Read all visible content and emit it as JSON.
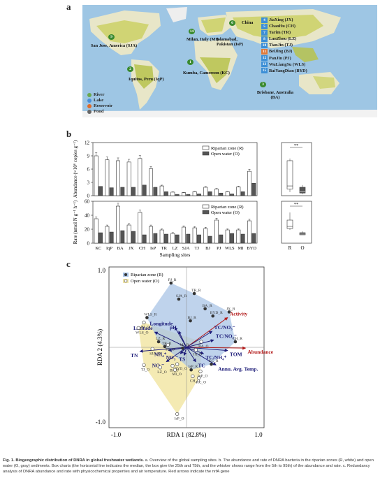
{
  "panels": {
    "a": "a",
    "b": "b",
    "c": "c"
  },
  "map": {
    "labels": [
      {
        "num": "9",
        "text": "San Jose, America (SJA)"
      },
      {
        "num": "2",
        "text": "Iquitos, Peru (IqP)"
      },
      {
        "num": "14",
        "text": "Milan, Italy (MI)"
      },
      {
        "num": "6",
        "text": "Islamabad, Pakistan (IsP)"
      },
      {
        "num": "1",
        "text": "Kumba, Cameroon (KC)"
      },
      {
        "num": "3",
        "text": "Brisbane, Australia (BA)"
      },
      {
        "num": "",
        "text": "China"
      }
    ],
    "sites": [
      {
        "num": "4",
        "name": "JiaXing (JX)",
        "color": "#3d8fd6"
      },
      {
        "num": "5",
        "name": "ChaoHu (CH)",
        "color": "#3d8fd6"
      },
      {
        "num": "7",
        "name": "Tarim (TR)",
        "color": "#3d8fd6"
      },
      {
        "num": "8",
        "name": "LanZhou (LZ)",
        "color": "#3d8fd6"
      },
      {
        "num": "10",
        "name": "TianJin (TJ)",
        "color": "#3d8fd6"
      },
      {
        "num": "11",
        "name": "BeiJing (BJ)",
        "color": "#e07a3a"
      },
      {
        "num": "12",
        "name": "PanJin (PJ)",
        "color": "#3d8fd6"
      },
      {
        "num": "13",
        "name": "WuLiangSu (WLS)",
        "color": "#3d8fd6"
      },
      {
        "num": "15",
        "name": "BaiYangDian (BYD)",
        "color": "#3d8fd6"
      }
    ],
    "legend": [
      {
        "label": "River",
        "color": "#6aa84f"
      },
      {
        "label": "Lake",
        "color": "#4a90d9"
      },
      {
        "label": "Reservoir",
        "color": "#e06b2a"
      },
      {
        "label": "Pond",
        "color": "#666666"
      }
    ]
  },
  "chart_data": [
    {
      "type": "bar",
      "title": "",
      "ylabel": "Abundance (×10⁶ copies g⁻¹)",
      "ylim": [
        0,
        12
      ],
      "yticks": [
        0,
        3,
        6,
        9,
        12
      ],
      "categories": [
        "KC",
        "IqP",
        "BA",
        "JX",
        "CH",
        "IsP",
        "TR",
        "LZ",
        "SJA",
        "TJ",
        "BJ",
        "PJ",
        "WLS",
        "MI",
        "BYD"
      ],
      "series": [
        {
          "name": "Riparian zone (R)",
          "values": [
            9.0,
            8.1,
            7.9,
            7.6,
            8.4,
            6.1,
            2.2,
            0.8,
            0.7,
            0.9,
            1.9,
            1.5,
            0.9,
            2.0,
            5.5
          ]
        },
        {
          "name": "Open water (O)",
          "values": [
            2.1,
            1.8,
            1.9,
            1.9,
            2.4,
            1.9,
            0.9,
            0.3,
            0.3,
            0.4,
            0.9,
            0.6,
            0.4,
            0.9,
            2.8
          ]
        }
      ],
      "inset_ticks": [
        "**"
      ]
    },
    {
      "type": "bar",
      "title": "",
      "ylabel": "Rate (nmol N g⁻¹ h⁻¹)",
      "ylim": [
        0,
        60
      ],
      "yticks": [
        0,
        20,
        40,
        60
      ],
      "xlabel": "Sampling sites",
      "categories": [
        "KC",
        "IqP",
        "BA",
        "JX",
        "CH",
        "IsP",
        "TR",
        "LZ",
        "SJA",
        "TJ",
        "BJ",
        "PJ",
        "WLS",
        "MI",
        "BYD"
      ],
      "series": [
        {
          "name": "Riparian zone (R)",
          "values": [
            35,
            24,
            53,
            26,
            44,
            24,
            19,
            14,
            23,
            22,
            21,
            33,
            19,
            19,
            32
          ]
        },
        {
          "name": "Open water (O)",
          "values": [
            15,
            16,
            18,
            17,
            12,
            14,
            13,
            12,
            13,
            12,
            10,
            12,
            14,
            13,
            14
          ]
        }
      ],
      "inset_ticks": [
        "**"
      ],
      "inset_xlabels": [
        "R",
        "O"
      ]
    },
    {
      "type": "scatter",
      "title": "",
      "xlabel": "RDA 1 (82.8%)",
      "ylabel": "RDA 2 (4.3%)",
      "xlim": [
        -1.0,
        1.0
      ],
      "ylim": [
        -1.0,
        1.0
      ],
      "xtick_labels": [
        "-1.0",
        "1.0"
      ],
      "ytick_labels": [
        "1.0",
        "-1.0"
      ],
      "legend": [
        {
          "label": "Riparian zone (R)",
          "color": "#a9c4e6"
        },
        {
          "label": "Open water (O)",
          "color": "#f2e6a6"
        }
      ],
      "riparian_points": [
        {
          "label": "PJ_R",
          "x": -0.2,
          "y": 0.8
        },
        {
          "label": "SJA_R",
          "x": -0.1,
          "y": 0.6
        },
        {
          "label": "TR_R",
          "x": 0.1,
          "y": 0.67
        },
        {
          "label": "BA_R",
          "x": 0.24,
          "y": 0.48
        },
        {
          "label": "JX_R",
          "x": 0.55,
          "y": 0.44
        },
        {
          "label": "BYD_R",
          "x": 0.34,
          "y": 0.39
        },
        {
          "label": "BJ_R",
          "x": 0.05,
          "y": 0.33
        },
        {
          "label": "WLS_R",
          "x": -0.51,
          "y": 0.37
        },
        {
          "label": "LZ_R",
          "x": -0.36,
          "y": 0.07
        },
        {
          "label": "TR_R",
          "x": -0.28,
          "y": 0.01
        },
        {
          "label": "CH_R",
          "x": 0.63,
          "y": 0.07
        },
        {
          "label": "MI_R",
          "x": -0.05,
          "y": -0.01
        },
        {
          "label": "KC_R",
          "x": 0.32,
          "y": -0.21
        },
        {
          "label": "IsP_R",
          "x": 0.06,
          "y": -0.28
        }
      ],
      "open_points": [
        {
          "label": "PJ_O",
          "x": -0.55,
          "y": 0.31
        },
        {
          "label": "WLS_O",
          "x": -0.62,
          "y": 0.24
        },
        {
          "label": "SJA_O",
          "x": -0.44,
          "y": -0.02
        },
        {
          "label": "TJ_O",
          "x": -0.55,
          "y": -0.22
        },
        {
          "label": "LZ_O",
          "x": -0.34,
          "y": -0.25
        },
        {
          "label": "BJ_O",
          "x": -0.18,
          "y": -0.23
        },
        {
          "label": "BYD_O",
          "x": -0.12,
          "y": -0.21
        },
        {
          "label": "MI_O",
          "x": -0.15,
          "y": -0.28
        },
        {
          "label": "TR_O",
          "x": -0.24,
          "y": 0.03
        },
        {
          "label": "BA_O",
          "x": 0.19,
          "y": 0.07
        },
        {
          "label": "JX_O",
          "x": 0.12,
          "y": -0.03
        },
        {
          "label": "CH_O",
          "x": 0.08,
          "y": -0.36
        },
        {
          "label": "KC_O",
          "x": 0.16,
          "y": -0.38
        },
        {
          "label": "IqP_O",
          "x": 0.18,
          "y": -0.3
        },
        {
          "label": "IsP_O",
          "x": -0.12,
          "y": -0.83
        }
      ],
      "arrows": [
        {
          "label": "Activity",
          "x": 0.53,
          "y": 0.37,
          "kind": "response"
        },
        {
          "label": "Abundance",
          "x": 0.76,
          "y": -0.01,
          "kind": "response"
        },
        {
          "label": "Longitude",
          "x": -0.15,
          "y": 0.25,
          "kind": "env"
        },
        {
          "label": "pH",
          "x": -0.1,
          "y": 0.2,
          "kind": "env"
        },
        {
          "label": "Latitude",
          "x": -0.41,
          "y": 0.19,
          "kind": "env"
        },
        {
          "label": "TC/NO₃⁻",
          "x": 0.33,
          "y": 0.2,
          "kind": "env"
        },
        {
          "label": "TC/NO₂⁻",
          "x": 0.35,
          "y": 0.09,
          "kind": "env"
        },
        {
          "label": "TN",
          "x": -0.6,
          "y": -0.05,
          "kind": "env"
        },
        {
          "label": "NH₄⁺",
          "x": -0.23,
          "y": -0.04,
          "kind": "env"
        },
        {
          "label": "NO₃⁻",
          "x": -0.08,
          "y": -0.08,
          "kind": "env"
        },
        {
          "label": "TS",
          "x": -0.03,
          "y": -0.1,
          "kind": "env"
        },
        {
          "label": "TC/NH₄⁺",
          "x": 0.22,
          "y": -0.08,
          "kind": "env"
        },
        {
          "label": "TOM",
          "x": 0.53,
          "y": -0.04,
          "kind": "env"
        },
        {
          "label": "NO₂⁻",
          "x": -0.26,
          "y": -0.18,
          "kind": "env"
        },
        {
          "label": "TC",
          "x": 0.12,
          "y": -0.18,
          "kind": "env"
        },
        {
          "label": "Annu. Avg. Temp.",
          "x": 0.38,
          "y": -0.22,
          "kind": "env"
        }
      ],
      "colors": {
        "env": "#1f1e7a",
        "response": "#b31b1b"
      }
    }
  ],
  "caption": {
    "bold": "Fig. 1.  Biogeographic distribution of DNRA in global freshwater wetlands.",
    "text": " a. Overview of the global sampling sites. b. The abundance and rate of DNRA bacteria in the riparian zones (R, white) and open water (O, gray) sediments. Box charts (the horizontal line indicates the median, the box give the 25th and 75th, and the whisker shows range from the 5th to 95th) of the abundance and rate. c. Redundancy analysis of DNRA abundance and rate with physicochemical properties and air temperature. Red arrows indicate the nrfA gene"
  }
}
